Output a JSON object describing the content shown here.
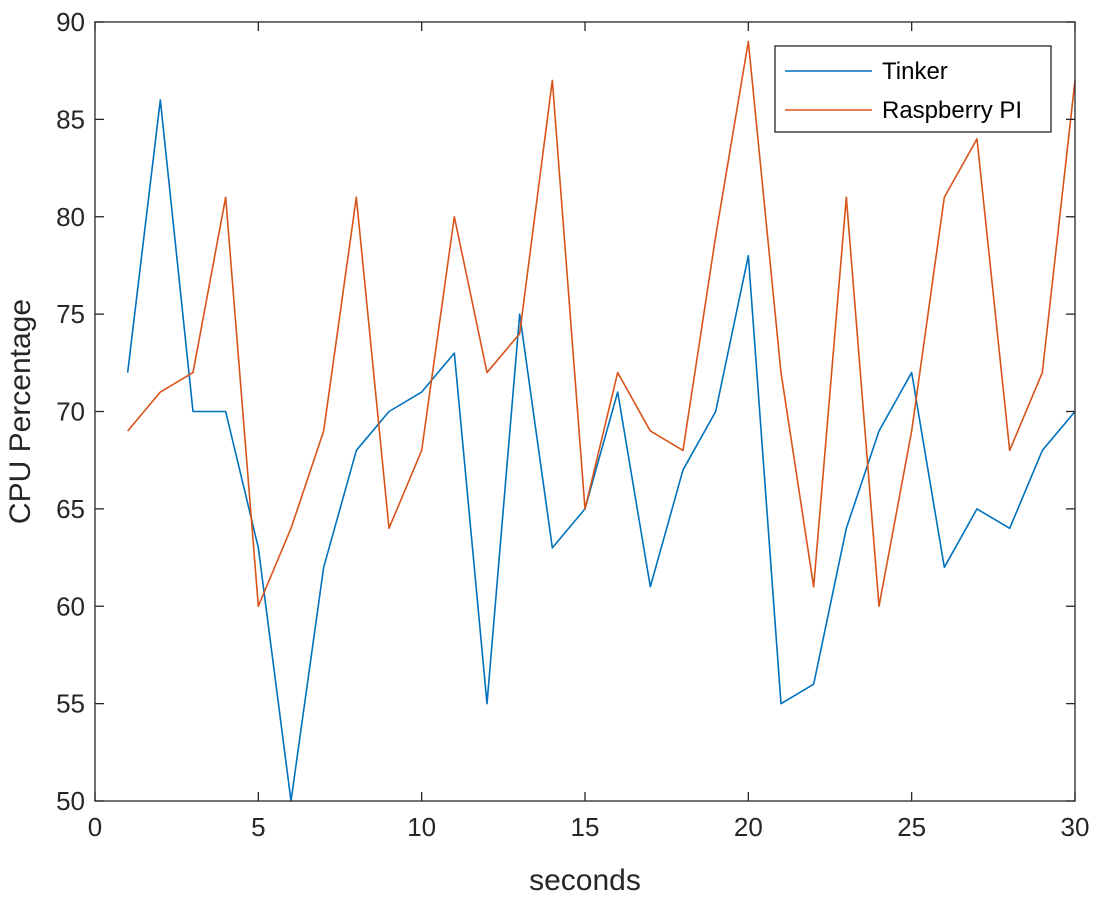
{
  "chart_data": {
    "type": "line",
    "xlabel": "seconds",
    "ylabel": "CPU Percentage",
    "xlim": [
      0,
      30
    ],
    "ylim": [
      50,
      90
    ],
    "xticks": [
      0,
      5,
      10,
      15,
      20,
      25,
      30
    ],
    "yticks": [
      50,
      55,
      60,
      65,
      70,
      75,
      80,
      85,
      90
    ],
    "grid": false,
    "legend_position": "top-right",
    "x": [
      1,
      2,
      3,
      4,
      5,
      6,
      7,
      8,
      9,
      10,
      11,
      12,
      13,
      14,
      15,
      16,
      17,
      18,
      19,
      20,
      21,
      22,
      23,
      24,
      25,
      26,
      27,
      28,
      29,
      30
    ],
    "series": [
      {
        "name": "Tinker",
        "color": "#0072BD",
        "values": [
          72,
          86,
          70,
          70,
          63,
          50,
          62,
          68,
          70,
          71,
          73,
          55,
          75,
          63,
          65,
          71,
          61,
          67,
          70,
          78,
          55,
          56,
          64,
          69,
          72,
          62,
          65,
          64,
          68,
          70
        ]
      },
      {
        "name": "Raspberry PI",
        "color": "#D95319",
        "values": [
          69,
          71,
          72,
          81,
          60,
          64,
          69,
          81,
          64,
          68,
          80,
          72,
          74,
          87,
          65,
          72,
          69,
          68,
          79,
          89,
          72,
          61,
          81,
          60,
          69,
          81,
          84,
          68,
          72,
          87
        ]
      }
    ]
  }
}
